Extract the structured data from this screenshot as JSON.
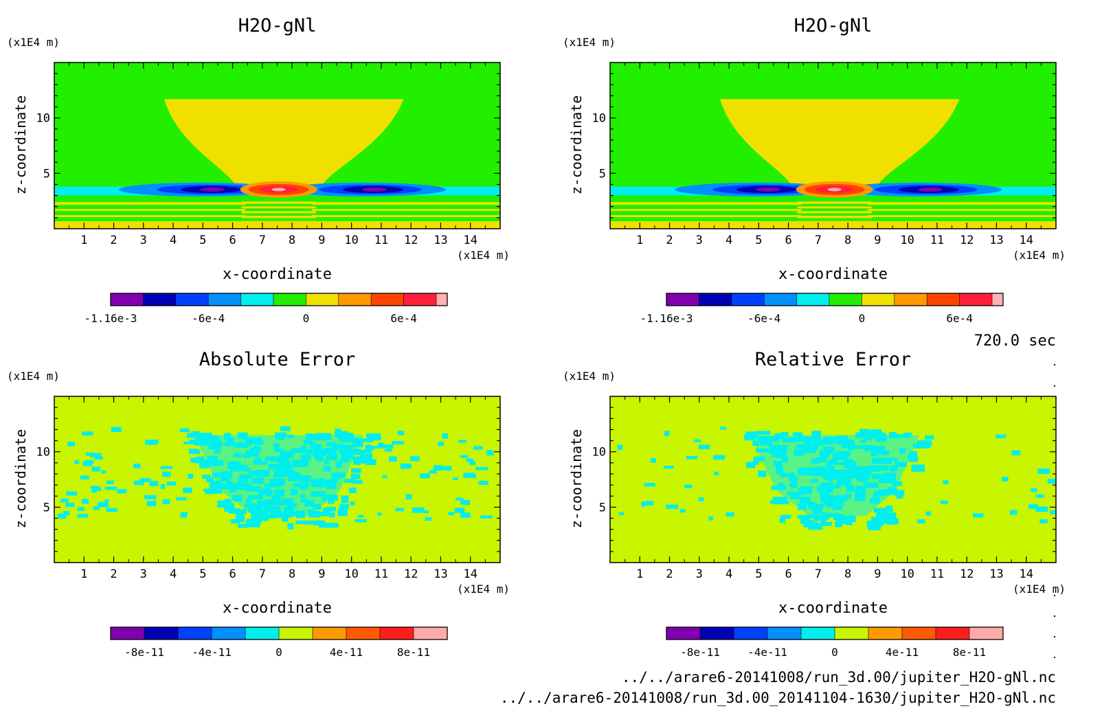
{
  "figure": {
    "time_label": "720.0 sec",
    "files": [
      "../../arare6-20141008/run_3d.00/jupiter_H2O-gNl.nc",
      "../../arare6-20141008/run_3d.00_20141104-1630/jupiter_H2O-gNl.nc"
    ]
  },
  "colors": {
    "field": [
      "#8000b0",
      "#0000b4",
      "#0040ff",
      "#0090ff",
      "#00eeee",
      "#22ee00",
      "#f0e000",
      "#ff9900",
      "#ff4400",
      "#ff1e3c",
      "#ffb0b0"
    ],
    "error": [
      "#8000b0",
      "#0000b4",
      "#0040ff",
      "#0090ff",
      "#00eeee",
      "#c8f500",
      "#ff9900",
      "#ff5a00",
      "#ff1e1e",
      "#ffaaaa"
    ]
  },
  "chart_data": [
    {
      "type": "heatmap",
      "title": "H2O-gNl",
      "xlabel": "x-coordinate",
      "ylabel": "z-coordinate",
      "x_unit": "(x1E4 m)",
      "y_unit": "(x1E4 m)",
      "xlim": [
        0,
        15
      ],
      "ylim": [
        0,
        15
      ],
      "x_ticks": [
        "1",
        "2",
        "3",
        "4",
        "5",
        "6",
        "7",
        "8",
        "9",
        "10",
        "11",
        "12",
        "13",
        "14"
      ],
      "y_ticks": [
        "5",
        "10"
      ],
      "colorbar": {
        "levels": 11,
        "labels": [
          {
            "value": -0.00116,
            "text": "-1.16e-3",
            "index": 0
          },
          {
            "value": -0.0006,
            "text": "-6e-4",
            "index": 3
          },
          {
            "value": 0,
            "text": "0",
            "index": 6
          },
          {
            "value": 0.0006,
            "text": "6e-4",
            "index": 9
          }
        ]
      }
    },
    {
      "type": "heatmap",
      "title": "H2O-gNl",
      "xlabel": "x-coordinate",
      "ylabel": "z-coordinate",
      "x_unit": "(x1E4 m)",
      "y_unit": "(x1E4 m)",
      "xlim": [
        0,
        15
      ],
      "ylim": [
        0,
        15
      ],
      "x_ticks": [
        "1",
        "2",
        "3",
        "4",
        "5",
        "6",
        "7",
        "8",
        "9",
        "10",
        "11",
        "12",
        "13",
        "14"
      ],
      "y_ticks": [
        "5",
        "10"
      ],
      "colorbar": {
        "levels": 11,
        "labels": [
          {
            "value": -0.00116,
            "text": "-1.16e-3",
            "index": 0
          },
          {
            "value": -0.0006,
            "text": "-6e-4",
            "index": 3
          },
          {
            "value": 0,
            "text": "0",
            "index": 6
          },
          {
            "value": 0.0006,
            "text": "6e-4",
            "index": 9
          }
        ]
      }
    },
    {
      "type": "heatmap",
      "title": "Absolute Error",
      "xlabel": "x-coordinate",
      "ylabel": "z-coordinate",
      "x_unit": "(x1E4 m)",
      "y_unit": "(x1E4 m)",
      "xlim": [
        0,
        15
      ],
      "ylim": [
        0,
        15
      ],
      "x_ticks": [
        "1",
        "2",
        "3",
        "4",
        "5",
        "6",
        "7",
        "8",
        "9",
        "10",
        "11",
        "12",
        "13",
        "14"
      ],
      "y_ticks": [
        "5",
        "10"
      ],
      "colorbar": {
        "levels": 10,
        "labels": [
          {
            "value": -8e-11,
            "text": "-8e-11",
            "index": 1
          },
          {
            "value": -4e-11,
            "text": "-4e-11",
            "index": 3
          },
          {
            "value": 0,
            "text": "0",
            "index": 5
          },
          {
            "value": 4e-11,
            "text": "4e-11",
            "index": 7
          },
          {
            "value": 8e-11,
            "text": "8e-11",
            "index": 9
          }
        ]
      }
    },
    {
      "type": "heatmap",
      "title": "Relative Error",
      "xlabel": "x-coordinate",
      "ylabel": "z-coordinate",
      "x_unit": "(x1E4 m)",
      "y_unit": "(x1E4 m)",
      "xlim": [
        0,
        15
      ],
      "ylim": [
        0,
        15
      ],
      "x_ticks": [
        "1",
        "2",
        "3",
        "4",
        "5",
        "6",
        "7",
        "8",
        "9",
        "10",
        "11",
        "12",
        "13",
        "14"
      ],
      "y_ticks": [
        "5",
        "10"
      ],
      "colorbar": {
        "levels": 10,
        "labels": [
          {
            "value": -8e-11,
            "text": "-8e-11",
            "index": 1
          },
          {
            "value": -4e-11,
            "text": "-4e-11",
            "index": 3
          },
          {
            "value": 0,
            "text": "0",
            "index": 5
          },
          {
            "value": 4e-11,
            "text": "4e-11",
            "index": 7
          },
          {
            "value": 8e-11,
            "text": "8e-11",
            "index": 9
          }
        ]
      }
    }
  ]
}
